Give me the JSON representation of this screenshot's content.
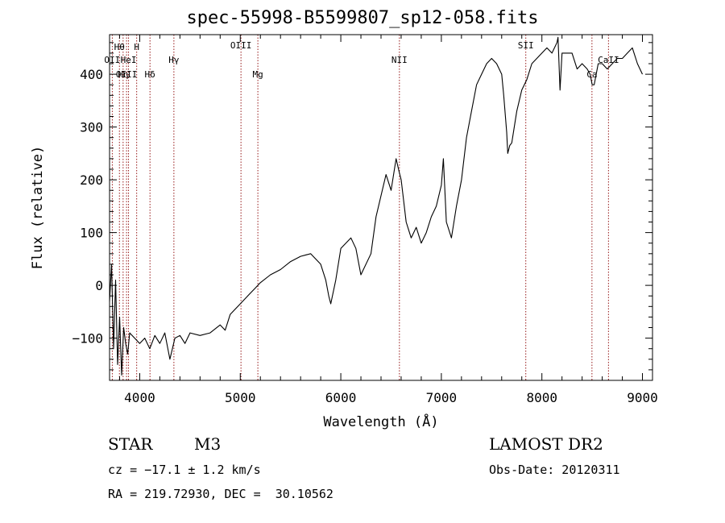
{
  "header": {
    "title": "spec-55998-B5599807_sp12-058.fits"
  },
  "footer": {
    "object_class": "STAR",
    "subclass": "M3",
    "survey": "LAMOST DR2",
    "cz": "cz = −17.1 ± 1.2 km/s",
    "obs_date": "Obs-Date: 20120311",
    "radec": "RA = 219.72930, DEC =  30.10562"
  },
  "chart_data": {
    "type": "line",
    "xlabel": "Wavelength (Å)",
    "ylabel": "Flux (relative)",
    "xlim": [
      3700,
      9100
    ],
    "ylim": [
      -180,
      475
    ],
    "x_ticks": [
      4000,
      5000,
      6000,
      7000,
      8000,
      9000
    ],
    "y_ticks": [
      -100,
      0,
      100,
      200,
      300,
      400
    ],
    "y_tick_labels": [
      "−100",
      "0",
      "100",
      "200",
      "300",
      "400"
    ],
    "grid": false,
    "line_color": "#000000",
    "marker_color": "#8b0000",
    "lines": [
      {
        "label": "Hθ",
        "wavelength": 3798,
        "row": 1
      },
      {
        "label": "H",
        "wavelength": 3970,
        "row": 1
      },
      {
        "label": "OII",
        "wavelength": 3727,
        "row": 2
      },
      {
        "label": "HeI",
        "wavelength": 3889,
        "row": 2
      },
      {
        "label": "Hγ",
        "wavelength": 4340,
        "row": 2
      },
      {
        "label": "OIII",
        "wavelength": 3869,
        "row": 3
      },
      {
        "label": "Hη",
        "wavelength": 3835,
        "row": 3
      },
      {
        "label": "Hδ",
        "wavelength": 4102,
        "row": 3
      },
      {
        "label": "OIII",
        "wavelength": 5007,
        "row": 0
      },
      {
        "label": "Mg",
        "wavelength": 5175,
        "row": 3
      },
      {
        "label": "NII",
        "wavelength": 6583,
        "row": 2
      },
      {
        "label": "SII",
        "wavelength": 7840,
        "row": 0
      },
      {
        "label": "Ca",
        "wavelength": 8498,
        "row": 3
      },
      {
        "label": "CaII",
        "wavelength": 8662,
        "row": 2
      }
    ],
    "series": [
      {
        "x": [
          3700,
          3720,
          3740,
          3760,
          3780,
          3800,
          3820,
          3840,
          3860,
          3880,
          3900,
          3950,
          4000,
          4050,
          4100,
          4150,
          4200,
          4250,
          4300,
          4350,
          4400,
          4450,
          4500,
          4600,
          4700,
          4800,
          4850,
          4900,
          5000,
          5100,
          5150,
          5200,
          5300,
          5400,
          5500,
          5600,
          5700,
          5800,
          5850,
          5880,
          5900,
          5950,
          6000,
          6100,
          6150,
          6200,
          6300,
          6350,
          6400,
          6450,
          6500,
          6550,
          6580,
          6600,
          6650,
          6700,
          6750,
          6800,
          6850,
          6900,
          6950,
          7000,
          7020,
          7050,
          7100,
          7150,
          7200,
          7250,
          7300,
          7350,
          7400,
          7450,
          7500,
          7550,
          7600,
          7620,
          7650,
          7660,
          7680,
          7700,
          7750,
          7800,
          7850,
          7900,
          8000,
          8050,
          8100,
          8150,
          8160,
          8180,
          8200,
          8250,
          8300,
          8350,
          8400,
          8450,
          8480,
          8500,
          8520,
          8540,
          8560,
          8600,
          8650,
          8700,
          8750,
          8800,
          8850,
          8900,
          8950,
          9000
        ],
        "y": [
          -30,
          40,
          -120,
          10,
          -150,
          -60,
          -170,
          -80,
          -110,
          -130,
          -90,
          -100,
          -110,
          -100,
          -120,
          -95,
          -110,
          -90,
          -140,
          -100,
          -95,
          -110,
          -90,
          -95,
          -90,
          -75,
          -85,
          -55,
          -35,
          -15,
          -5,
          5,
          20,
          30,
          45,
          55,
          60,
          40,
          10,
          -20,
          -35,
          10,
          70,
          90,
          70,
          20,
          60,
          130,
          170,
          210,
          180,
          240,
          215,
          200,
          120,
          90,
          110,
          80,
          100,
          130,
          150,
          190,
          240,
          120,
          90,
          150,
          200,
          280,
          330,
          380,
          400,
          420,
          430,
          420,
          400,
          360,
          290,
          250,
          265,
          270,
          330,
          370,
          390,
          420,
          440,
          450,
          440,
          460,
          470,
          370,
          440,
          440,
          440,
          410,
          420,
          410,
          400,
          380,
          380,
          400,
          420,
          420,
          410,
          420,
          430,
          430,
          440,
          450,
          420,
          400
        ]
      }
    ]
  }
}
